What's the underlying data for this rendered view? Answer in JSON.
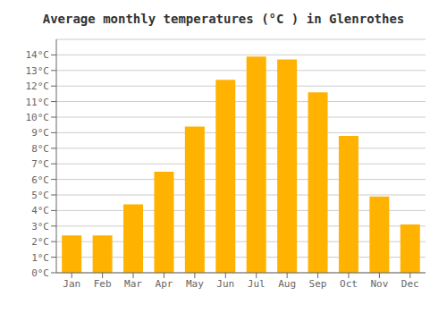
{
  "chart_data": {
    "type": "bar",
    "title": "Average monthly temperatures (°C ) in Glenrothes",
    "categories": [
      "Jan",
      "Feb",
      "Mar",
      "Apr",
      "May",
      "Jun",
      "Jul",
      "Aug",
      "Sep",
      "Oct",
      "Nov",
      "Dec"
    ],
    "values": [
      2.4,
      2.4,
      4.4,
      6.5,
      9.4,
      12.4,
      13.9,
      13.7,
      11.6,
      8.8,
      4.9,
      3.1
    ],
    "color": "#FFB300",
    "ylim": [
      0,
      15
    ],
    "yticks": [
      {
        "value": 0,
        "label": "0°C"
      },
      {
        "value": 1,
        "label": "1°C"
      },
      {
        "value": 2,
        "label": "2°C"
      },
      {
        "value": 3,
        "label": "3°C"
      },
      {
        "value": 4,
        "label": "4°C"
      },
      {
        "value": 5,
        "label": "5°C"
      },
      {
        "value": 6,
        "label": "6°C"
      },
      {
        "value": 7,
        "label": "7°C"
      },
      {
        "value": 8,
        "label": "8°C"
      },
      {
        "value": 9,
        "label": "9°C"
      },
      {
        "value": 10,
        "label": "10°C"
      },
      {
        "value": 11,
        "label": "11°C"
      },
      {
        "value": 12,
        "label": "12°C"
      },
      {
        "value": 13,
        "label": "13°C"
      },
      {
        "value": 14,
        "label": "14°C"
      }
    ],
    "grid": true
  }
}
